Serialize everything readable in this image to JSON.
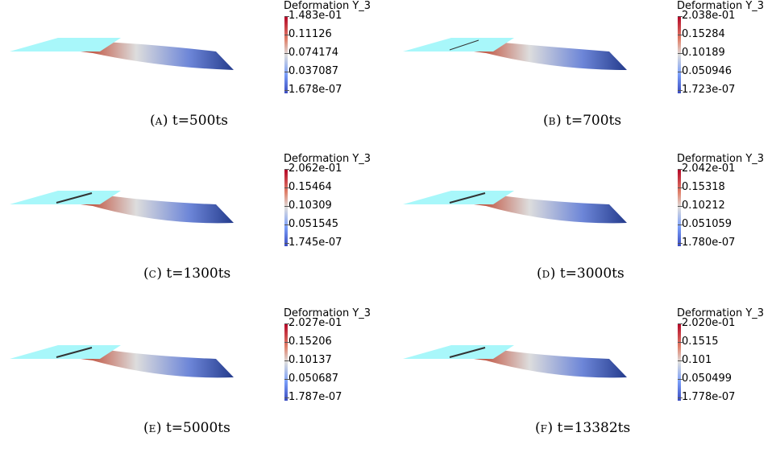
{
  "legend_title": "Deformation Y_3",
  "panels": [
    {
      "caption": {
        "letter": "A",
        "text": "t=500ts"
      },
      "ticks": [
        "1.483e-01",
        "0.11126",
        "0.074174",
        "0.037087",
        "1.678e-07"
      ]
    },
    {
      "caption": {
        "letter": "B",
        "text": "t=700ts"
      },
      "ticks": [
        "2.038e-01",
        "0.15284",
        "0.10189",
        "0.050946",
        "1.723e-07"
      ]
    },
    {
      "caption": {
        "letter": "C",
        "text": "t=1300ts"
      },
      "ticks": [
        "2.062e-01",
        "0.15464",
        "0.10309",
        "0.051545",
        "1.745e-07"
      ]
    },
    {
      "caption": {
        "letter": "D",
        "text": "t=3000ts"
      },
      "ticks": [
        "2.042e-01",
        "0.15318",
        "0.10212",
        "0.051059",
        "1.780e-07"
      ]
    },
    {
      "caption": {
        "letter": "E",
        "text": "t=5000ts"
      },
      "ticks": [
        "2.027e-01",
        "0.15206",
        "0.10137",
        "0.050687",
        "1.787e-07"
      ]
    },
    {
      "caption": {
        "letter": "F",
        "text": "t=13382ts"
      },
      "ticks": [
        "2.020e-01",
        "0.1515",
        "0.101",
        "0.050499",
        "1.778e-07"
      ]
    }
  ],
  "colors": {
    "plate": "#a8f7fa",
    "colormap_high": "#b40426",
    "colormap_mid": "#dddddd",
    "colormap_low": "#3b4cc0"
  }
}
